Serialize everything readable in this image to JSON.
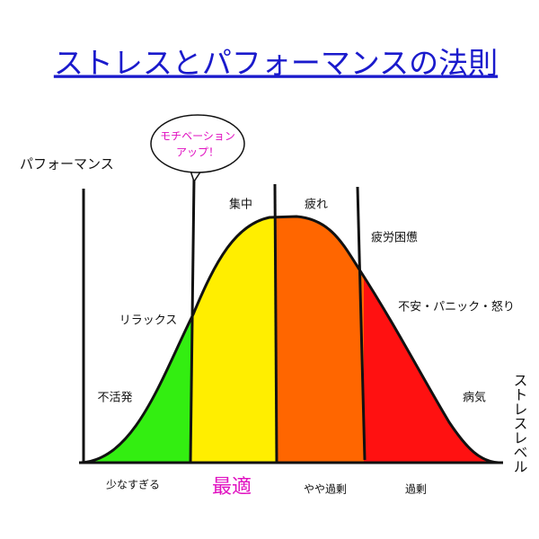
{
  "title": "ストレスとパフォーマンスの法則",
  "axes": {
    "y_label": "パフォーマンス",
    "x_label": "ストレスレベル"
  },
  "bubble": {
    "lines": [
      "モチベーション",
      "アップ！"
    ]
  },
  "zones": {
    "labels": [
      "集中",
      "疲れ",
      "疲労困憊",
      "リラックス",
      "不安・パニック・怒り",
      "不活発",
      "病気"
    ]
  },
  "bottom": {
    "labels": [
      "少なすぎる",
      "最適",
      "やや過剰",
      "過剰"
    ]
  }
}
